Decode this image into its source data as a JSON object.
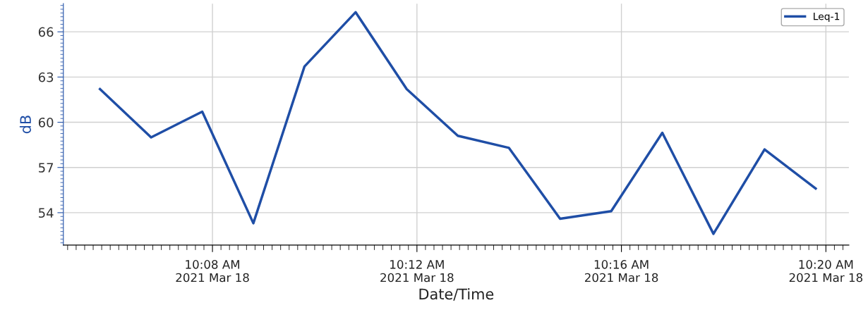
{
  "chart_data": {
    "type": "line",
    "xlabel": "Date/Time",
    "ylabel": "dB",
    "x": [
      "2021-03-18T10:05:48",
      "2021-03-18T10:06:48",
      "2021-03-18T10:07:48",
      "2021-03-18T10:08:48",
      "2021-03-18T10:09:48",
      "2021-03-18T10:10:48",
      "2021-03-18T10:11:48",
      "2021-03-18T10:12:48",
      "2021-03-18T10:13:48",
      "2021-03-18T10:14:48",
      "2021-03-18T10:15:48",
      "2021-03-18T10:16:48",
      "2021-03-18T10:17:48",
      "2021-03-18T10:18:48",
      "2021-03-18T10:19:48"
    ],
    "series": [
      {
        "name": "Leq-1",
        "color": "#1f4ea6",
        "values": [
          62.2,
          59.0,
          60.7,
          53.3,
          63.7,
          67.3,
          62.2,
          59.1,
          58.3,
          53.6,
          54.1,
          59.3,
          52.6,
          58.2,
          55.6
        ]
      }
    ],
    "xlim": [
      "2021-03-18T10:05:05",
      "2021-03-18T10:20:27"
    ],
    "xticks": [
      {
        "value": "2021-03-18T10:08",
        "label": "10:08 AM\n2021 Mar 18"
      },
      {
        "value": "2021-03-18T10:12",
        "label": "10:12 AM\n2021 Mar 18"
      },
      {
        "value": "2021-03-18T10:16",
        "label": "10:16 AM\n2021 Mar 18"
      },
      {
        "value": "2021-03-18T10:20",
        "label": "10:20 AM\n2021 Mar 18"
      }
    ],
    "ylim": [
      51.85,
      67.87
    ],
    "yticks": [
      54,
      57,
      60,
      63,
      66
    ],
    "grid": true,
    "legend": "top right",
    "marker": "none",
    "line_style": "solid"
  }
}
